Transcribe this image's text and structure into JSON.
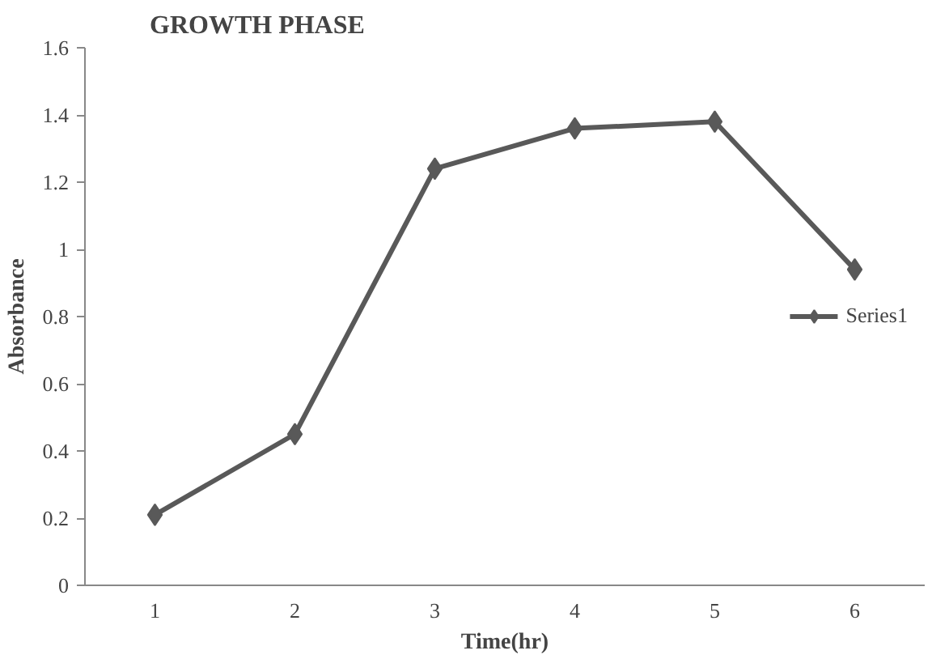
{
  "chart_data": {
    "type": "line",
    "title": "GROWTH PHASE",
    "xlabel": "Time(hr)",
    "ylabel": "Absorbance",
    "categories": [
      "1",
      "2",
      "3",
      "4",
      "5",
      "6"
    ],
    "series": [
      {
        "name": "Series1",
        "color": "#595959",
        "values": [
          0.21,
          0.45,
          1.24,
          1.36,
          1.38,
          0.94
        ]
      }
    ],
    "ylim": [
      0,
      1.6
    ],
    "yticks": [
      0,
      {
        "value": 0.2,
        "label": "0.2"
      },
      {
        "value": 0.4,
        "label": "0.4"
      },
      {
        "value": 0.6,
        "label": "0.6"
      },
      {
        "value": 0.8,
        "label": "0.8"
      },
      1,
      {
        "value": 1.2,
        "label": "1.2"
      },
      {
        "value": 1.4,
        "label": "1.4"
      },
      {
        "value": 1.6,
        "label": "1.6"
      }
    ],
    "legend": "right",
    "marker": "diamond",
    "line_style": "solid",
    "grid": false
  }
}
